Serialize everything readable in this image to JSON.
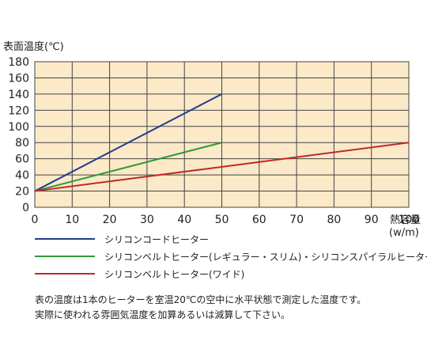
{
  "chart_data": {
    "type": "line",
    "ylabel": "表面温度(℃)",
    "xlabel": "熱容量",
    "xunit": "(w/m)",
    "xlim": [
      0,
      100
    ],
    "ylim": [
      0,
      180
    ],
    "xticks": [
      0,
      10,
      20,
      30,
      40,
      50,
      60,
      70,
      80,
      90,
      100
    ],
    "yticks": [
      0,
      20,
      40,
      60,
      80,
      100,
      120,
      140,
      160,
      180
    ],
    "grid": true,
    "background": "#fbe9c8",
    "gridColor": "#444444",
    "legend_position": "bottom",
    "series": [
      {
        "name": "シリコンコードヒーター",
        "color": "#1f3f8c",
        "x": [
          0,
          50
        ],
        "y": [
          20,
          140
        ]
      },
      {
        "name": "シリコンベルトヒーター(レギュラー・スリム)・シリコンスパイラルヒーター",
        "color": "#2e9a3a",
        "x": [
          0,
          50
        ],
        "y": [
          20,
          80
        ]
      },
      {
        "name": "シリコンベルトヒーター(ワイド)",
        "color": "#c0282a",
        "x": [
          0,
          100
        ],
        "y": [
          20,
          80
        ]
      }
    ]
  },
  "notes": [
    "表の温度は1本のヒーターを室温20℃の空中に水平状態で測定した温度です。",
    "実際に使われる雰囲気温度を加算あるいは減算して下さい。"
  ]
}
